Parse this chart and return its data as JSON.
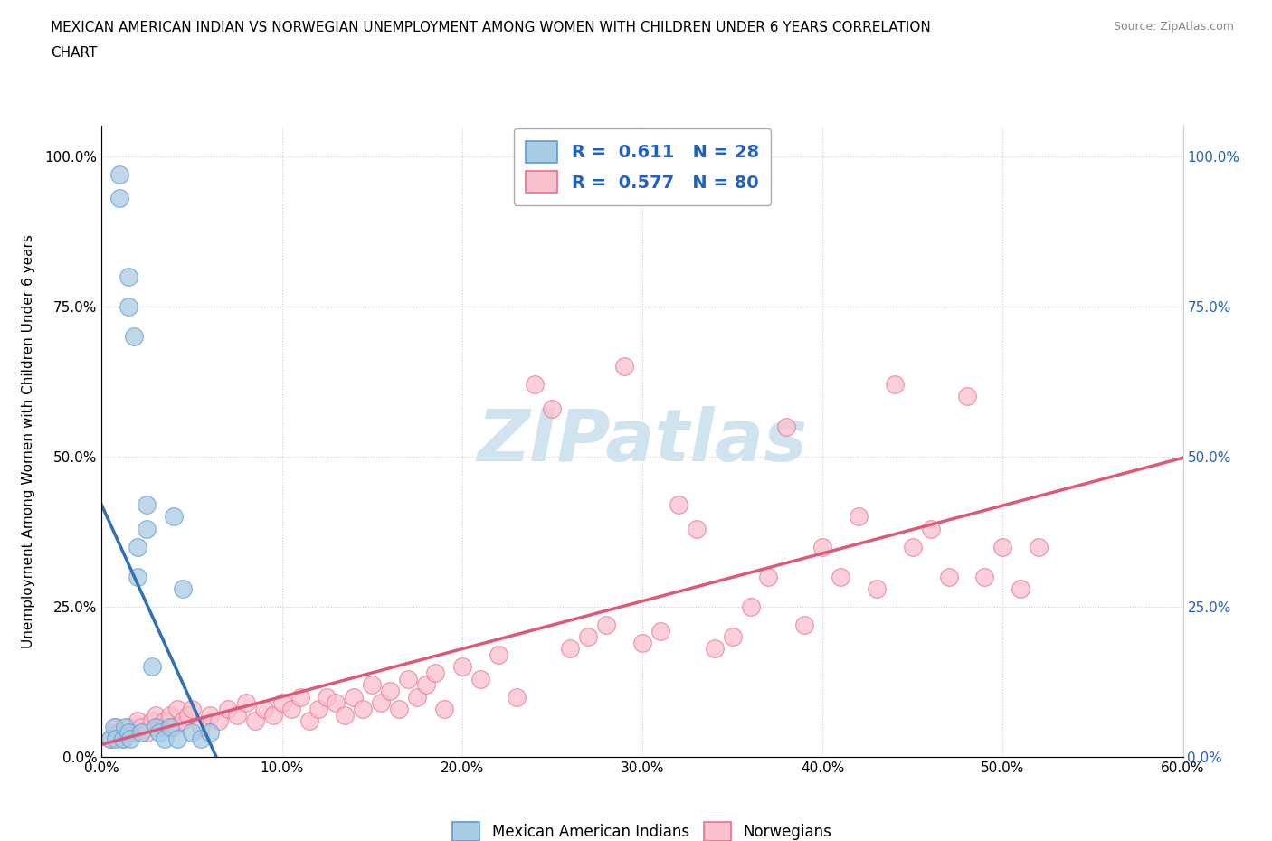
{
  "title_line1": "MEXICAN AMERICAN INDIAN VS NORWEGIAN UNEMPLOYMENT AMONG WOMEN WITH CHILDREN UNDER 6 YEARS CORRELATION",
  "title_line2": "CHART",
  "source_text": "Source: ZipAtlas.com",
  "ylabel": "Unemployment Among Women with Children Under 6 years",
  "xlim": [
    0.0,
    0.6
  ],
  "ylim": [
    0.0,
    1.05
  ],
  "xtick_values": [
    0.0,
    0.1,
    0.2,
    0.3,
    0.4,
    0.5,
    0.6
  ],
  "ytick_values": [
    0.0,
    0.25,
    0.5,
    0.75,
    1.0
  ],
  "blue_fill": "#a8cce4",
  "blue_edge": "#5b9bd5",
  "blue_line": "#3070b5",
  "pink_fill": "#f9c0cd",
  "pink_edge": "#e87090",
  "pink_line": "#e05878",
  "watermark_color": "#d0e4f0",
  "legend_R_blue": "0.611",
  "legend_N_blue": "28",
  "legend_R_pink": "0.577",
  "legend_N_pink": "80",
  "legend_text_color": "#2060c0",
  "blue_label": "Mexican American Indians",
  "pink_label": "Norwegians",
  "blue_scatter_x": [
    0.005,
    0.007,
    0.008,
    0.01,
    0.01,
    0.012,
    0.013,
    0.015,
    0.015,
    0.015,
    0.016,
    0.018,
    0.02,
    0.02,
    0.022,
    0.025,
    0.025,
    0.028,
    0.03,
    0.032,
    0.035,
    0.038,
    0.04,
    0.042,
    0.045,
    0.05,
    0.055,
    0.06
  ],
  "blue_scatter_y": [
    0.03,
    0.05,
    0.03,
    0.97,
    0.93,
    0.03,
    0.05,
    0.8,
    0.75,
    0.04,
    0.03,
    0.7,
    0.35,
    0.3,
    0.04,
    0.42,
    0.38,
    0.15,
    0.05,
    0.04,
    0.03,
    0.05,
    0.4,
    0.03,
    0.28,
    0.04,
    0.03,
    0.04
  ],
  "pink_scatter_x": [
    0.005,
    0.008,
    0.01,
    0.012,
    0.015,
    0.018,
    0.02,
    0.022,
    0.025,
    0.028,
    0.03,
    0.032,
    0.035,
    0.038,
    0.04,
    0.042,
    0.045,
    0.048,
    0.05,
    0.055,
    0.06,
    0.065,
    0.07,
    0.075,
    0.08,
    0.085,
    0.09,
    0.095,
    0.1,
    0.105,
    0.11,
    0.115,
    0.12,
    0.125,
    0.13,
    0.135,
    0.14,
    0.145,
    0.15,
    0.155,
    0.16,
    0.165,
    0.17,
    0.175,
    0.18,
    0.185,
    0.19,
    0.2,
    0.21,
    0.22,
    0.23,
    0.24,
    0.25,
    0.26,
    0.27,
    0.28,
    0.29,
    0.3,
    0.31,
    0.32,
    0.33,
    0.34,
    0.35,
    0.36,
    0.37,
    0.38,
    0.39,
    0.4,
    0.41,
    0.42,
    0.43,
    0.44,
    0.45,
    0.46,
    0.47,
    0.48,
    0.49,
    0.5,
    0.51,
    0.52
  ],
  "pink_scatter_y": [
    0.03,
    0.05,
    0.04,
    0.03,
    0.05,
    0.04,
    0.06,
    0.05,
    0.04,
    0.06,
    0.07,
    0.05,
    0.06,
    0.07,
    0.05,
    0.08,
    0.06,
    0.07,
    0.08,
    0.05,
    0.07,
    0.06,
    0.08,
    0.07,
    0.09,
    0.06,
    0.08,
    0.07,
    0.09,
    0.08,
    0.1,
    0.06,
    0.08,
    0.1,
    0.09,
    0.07,
    0.1,
    0.08,
    0.12,
    0.09,
    0.11,
    0.08,
    0.13,
    0.1,
    0.12,
    0.14,
    0.08,
    0.15,
    0.13,
    0.17,
    0.1,
    0.62,
    0.58,
    0.18,
    0.2,
    0.22,
    0.65,
    0.19,
    0.21,
    0.42,
    0.38,
    0.18,
    0.2,
    0.25,
    0.3,
    0.55,
    0.22,
    0.35,
    0.3,
    0.4,
    0.28,
    0.62,
    0.35,
    0.38,
    0.3,
    0.6,
    0.3,
    0.35,
    0.28,
    0.35
  ]
}
